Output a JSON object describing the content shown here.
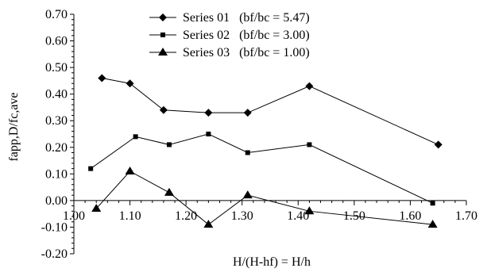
{
  "chart_data": {
    "type": "line",
    "title": "",
    "xlabel": "H/(H-hf) = H/h",
    "ylabel": "fapp,D/fc,ave",
    "xlim": [
      1.0,
      1.7
    ],
    "ylim": [
      -0.2,
      0.7
    ],
    "x_ticks": [
      "1.00",
      "1.10",
      "1.20",
      "1.30",
      "1.40",
      "1.50",
      "1.60",
      "1.70"
    ],
    "y_ticks": [
      "-0.20",
      "-0.10",
      "0.00",
      "0.10",
      "0.20",
      "0.30",
      "0.40",
      "0.50",
      "0.60",
      "0.70"
    ],
    "grid": false,
    "legend_position": "top-center",
    "series": [
      {
        "name": "Series 01   (bf/bc = 5.47)",
        "marker": "diamond",
        "color": "#000000",
        "x": [
          1.05,
          1.1,
          1.16,
          1.24,
          1.31,
          1.42,
          1.65
        ],
        "y": [
          0.46,
          0.44,
          0.34,
          0.33,
          0.33,
          0.43,
          0.21
        ]
      },
      {
        "name": "Series 02   (bf/bc = 3.00)",
        "marker": "square",
        "color": "#000000",
        "x": [
          1.03,
          1.11,
          1.17,
          1.24,
          1.31,
          1.42,
          1.64
        ],
        "y": [
          0.12,
          0.24,
          0.21,
          0.25,
          0.18,
          0.21,
          -0.01
        ]
      },
      {
        "name": "Series 03   (bf/bc = 1.00)",
        "marker": "triangle",
        "color": "#000000",
        "x": [
          1.04,
          1.1,
          1.17,
          1.24,
          1.31,
          1.42,
          1.64
        ],
        "y": [
          -0.03,
          0.11,
          0.03,
          -0.09,
          0.02,
          -0.04,
          -0.09
        ]
      }
    ]
  }
}
